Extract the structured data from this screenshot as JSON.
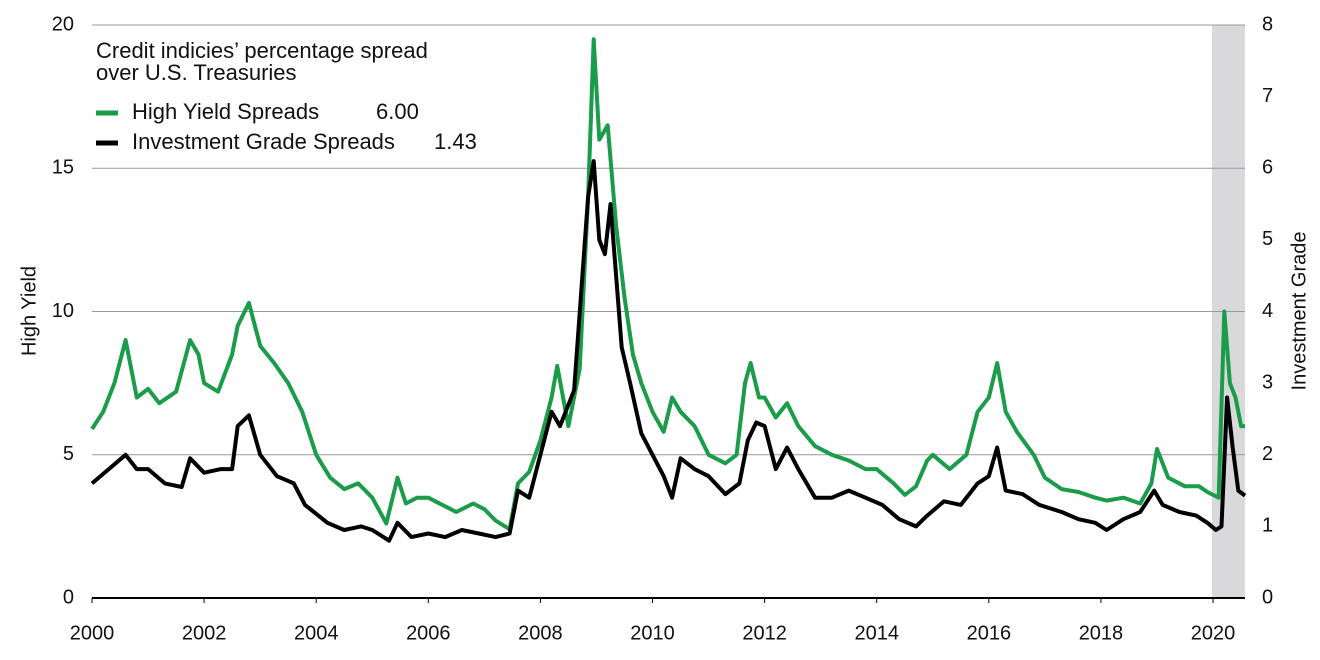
{
  "chart_data": {
    "type": "line",
    "title": [
      "Credit indicies’ percentage spread",
      "over U.S. Treasuries"
    ],
    "y_label": "High Yield",
    "y2_label": "Investment Grade",
    "xlim": [
      2000,
      2020.57
    ],
    "xticks": [
      2000,
      2002,
      2004,
      2006,
      2008,
      2010,
      2012,
      2014,
      2016,
      2018,
      2020
    ],
    "ylim": [
      0,
      20
    ],
    "yticks": [
      0,
      5,
      10,
      15,
      20
    ],
    "y2lim": [
      0,
      8
    ],
    "y2ticks": [
      0,
      1,
      2,
      3,
      4,
      5,
      6,
      7,
      8
    ],
    "grid": true,
    "shaded_region": [
      2019.98,
      2020.57
    ],
    "shaded_color": "#d9d9db",
    "series": [
      {
        "name": "High Yield Spreads",
        "legend_value": "6.00",
        "color": "#1a9c4a",
        "x": [
          2000.0,
          2000.2,
          2000.4,
          2000.6,
          2000.8,
          2001.0,
          2001.2,
          2001.5,
          2001.75,
          2001.9,
          2002.0,
          2002.25,
          2002.5,
          2002.6,
          2002.8,
          2003.0,
          2003.25,
          2003.5,
          2003.75,
          2004.0,
          2004.25,
          2004.5,
          2004.75,
          2005.0,
          2005.25,
          2005.45,
          2005.6,
          2005.8,
          2006.0,
          2006.3,
          2006.5,
          2006.8,
          2007.0,
          2007.2,
          2007.45,
          2007.6,
          2007.8,
          2008.0,
          2008.2,
          2008.3,
          2008.5,
          2008.7,
          2008.85,
          2008.95,
          2009.05,
          2009.2,
          2009.35,
          2009.5,
          2009.65,
          2009.8,
          2010.0,
          2010.2,
          2010.35,
          2010.5,
          2010.75,
          2011.0,
          2011.3,
          2011.5,
          2011.65,
          2011.75,
          2011.9,
          2012.0,
          2012.2,
          2012.4,
          2012.6,
          2012.9,
          2013.2,
          2013.5,
          2013.8,
          2014.0,
          2014.3,
          2014.5,
          2014.7,
          2014.9,
          2015.0,
          2015.3,
          2015.6,
          2015.8,
          2016.0,
          2016.15,
          2016.3,
          2016.5,
          2016.8,
          2017.0,
          2017.3,
          2017.6,
          2017.9,
          2018.1,
          2018.4,
          2018.7,
          2018.9,
          2019.0,
          2019.2,
          2019.5,
          2019.75,
          2019.9,
          2020.1,
          2020.2,
          2020.3,
          2020.4,
          2020.5,
          2020.57
        ],
        "values": [
          5.9,
          6.5,
          7.5,
          9.0,
          7.0,
          7.3,
          6.8,
          7.2,
          9.0,
          8.5,
          7.5,
          7.2,
          8.5,
          9.5,
          10.3,
          8.8,
          8.2,
          7.5,
          6.5,
          5.0,
          4.2,
          3.8,
          4.0,
          3.5,
          2.6,
          4.2,
          3.3,
          3.5,
          3.5,
          3.2,
          3.0,
          3.3,
          3.1,
          2.7,
          2.4,
          4.0,
          4.4,
          5.5,
          7.0,
          8.1,
          6.0,
          8.0,
          14.0,
          19.5,
          16.0,
          16.5,
          13.0,
          10.5,
          8.5,
          7.5,
          6.5,
          5.8,
          7.0,
          6.5,
          6.0,
          5.0,
          4.7,
          5.0,
          7.5,
          8.2,
          7.0,
          7.0,
          6.3,
          6.8,
          6.0,
          5.3,
          5.0,
          4.8,
          4.5,
          4.5,
          4.0,
          3.6,
          3.9,
          4.8,
          5.0,
          4.5,
          5.0,
          6.5,
          7.0,
          8.2,
          6.5,
          5.8,
          5.0,
          4.2,
          3.8,
          3.7,
          3.5,
          3.4,
          3.5,
          3.3,
          4.0,
          5.2,
          4.2,
          3.9,
          3.9,
          3.7,
          3.5,
          10.0,
          7.5,
          7.0,
          6.0,
          6.0
        ]
      },
      {
        "name": "Investment Grade Spreads",
        "legend_value": "1.43",
        "color": "#000000",
        "axis": "y2",
        "x": [
          2000.0,
          2000.3,
          2000.6,
          2000.8,
          2001.0,
          2001.3,
          2001.6,
          2001.75,
          2002.0,
          2002.3,
          2002.5,
          2002.6,
          2002.8,
          2003.0,
          2003.3,
          2003.6,
          2003.8,
          2004.2,
          2004.5,
          2004.8,
          2005.0,
          2005.3,
          2005.45,
          2005.7,
          2006.0,
          2006.3,
          2006.6,
          2006.9,
          2007.2,
          2007.45,
          2007.6,
          2007.8,
          2008.0,
          2008.2,
          2008.35,
          2008.6,
          2008.85,
          2008.95,
          2009.05,
          2009.15,
          2009.25,
          2009.45,
          2009.6,
          2009.8,
          2010.0,
          2010.2,
          2010.35,
          2010.5,
          2010.75,
          2011.0,
          2011.3,
          2011.55,
          2011.7,
          2011.85,
          2012.0,
          2012.2,
          2012.4,
          2012.6,
          2012.9,
          2013.2,
          2013.5,
          2013.8,
          2014.1,
          2014.4,
          2014.7,
          2014.9,
          2015.2,
          2015.5,
          2015.8,
          2016.0,
          2016.15,
          2016.3,
          2016.6,
          2016.9,
          2017.3,
          2017.6,
          2017.9,
          2018.1,
          2018.4,
          2018.7,
          2018.95,
          2019.1,
          2019.4,
          2019.7,
          2019.9,
          2020.05,
          2020.15,
          2020.25,
          2020.35,
          2020.45,
          2020.57
        ],
        "values": [
          1.6,
          1.8,
          2.0,
          1.8,
          1.8,
          1.6,
          1.55,
          1.95,
          1.75,
          1.8,
          1.8,
          2.4,
          2.55,
          2.0,
          1.7,
          1.6,
          1.3,
          1.05,
          0.95,
          1.0,
          0.95,
          0.8,
          1.05,
          0.85,
          0.9,
          0.85,
          0.95,
          0.9,
          0.85,
          0.9,
          1.5,
          1.4,
          2.0,
          2.6,
          2.4,
          2.9,
          5.6,
          6.1,
          5.0,
          4.8,
          5.5,
          3.5,
          3.0,
          2.3,
          2.0,
          1.7,
          1.4,
          1.95,
          1.8,
          1.7,
          1.45,
          1.6,
          2.2,
          2.45,
          2.4,
          1.8,
          2.1,
          1.8,
          1.4,
          1.4,
          1.5,
          1.4,
          1.3,
          1.1,
          1.0,
          1.15,
          1.35,
          1.3,
          1.6,
          1.7,
          2.1,
          1.5,
          1.45,
          1.3,
          1.2,
          1.1,
          1.05,
          0.95,
          1.1,
          1.2,
          1.5,
          1.3,
          1.2,
          1.15,
          1.05,
          0.95,
          1.0,
          2.8,
          2.1,
          1.5,
          1.43
        ]
      }
    ]
  }
}
